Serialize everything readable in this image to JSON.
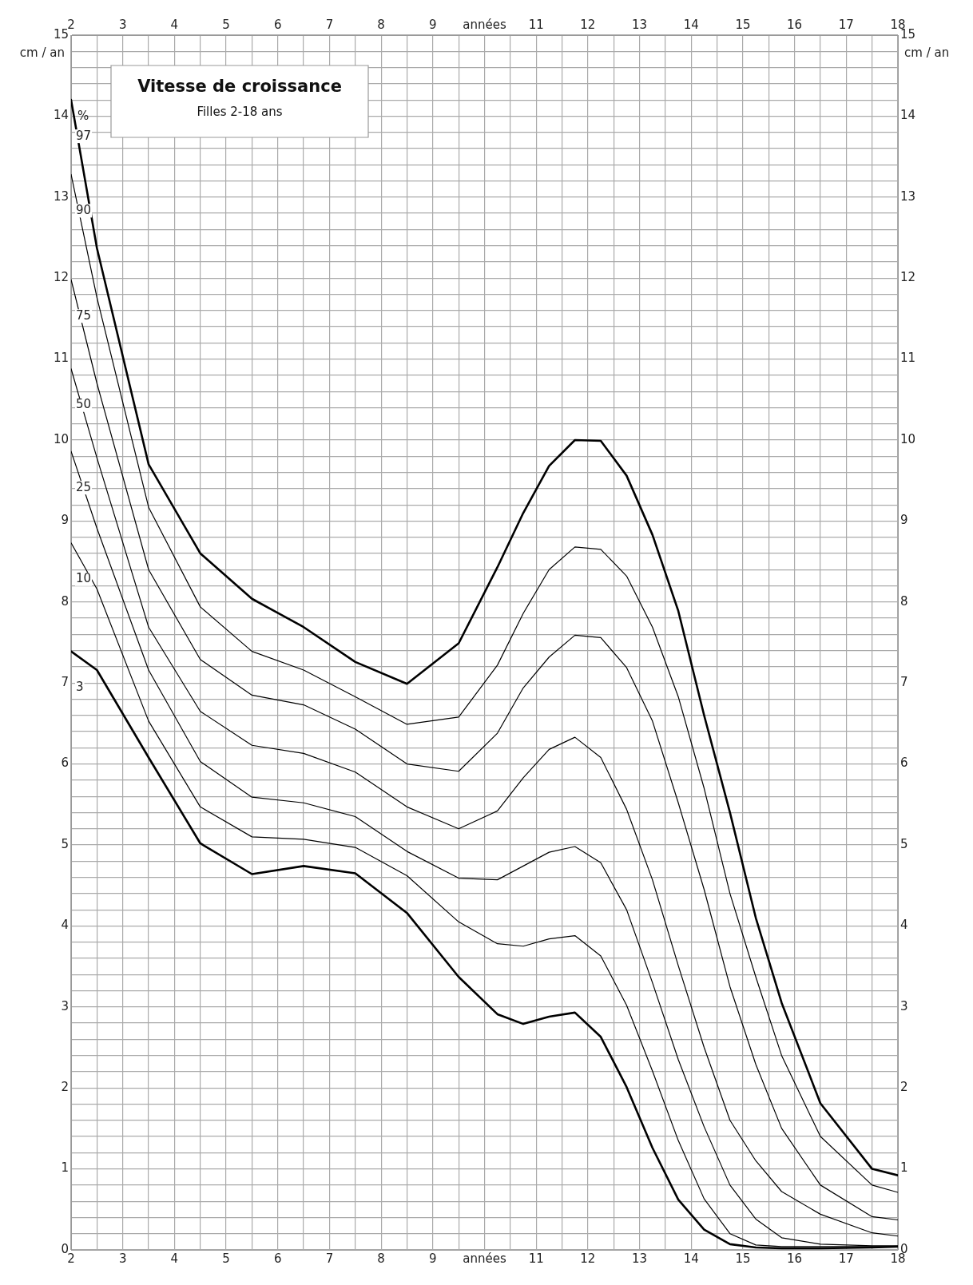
{
  "chart_data": {
    "type": "line",
    "title": "Vitesse de croissance",
    "subtitle": "Filles 2-18 ans",
    "ylabel": "cm / an",
    "y2label": "cm / an",
    "annotations": [
      "%"
    ],
    "x": [
      2,
      2.5,
      3.5,
      4.5,
      5.5,
      6.5,
      7.5,
      8.5,
      9.5,
      10.25,
      10.75,
      11.25,
      11.75,
      12.25,
      12.75,
      13.25,
      13.75,
      14.25,
      14.75,
      15.25,
      15.75,
      16.5,
      17.5,
      18
    ],
    "series": [
      {
        "name": "97",
        "color": "#000000",
        "values": [
          14.2,
          12.37,
          9.7,
          8.6,
          8.04,
          7.69,
          7.26,
          6.99,
          7.49,
          8.43,
          9.1,
          9.68,
          10.0,
          9.99,
          9.56,
          8.83,
          7.89,
          6.6,
          5.4,
          4.1,
          3.05,
          1.81,
          1.0,
          0.92
        ]
      },
      {
        "name": "90",
        "color": "#000000",
        "values": [
          13.28,
          11.76,
          9.17,
          7.94,
          7.39,
          7.16,
          6.83,
          6.49,
          6.58,
          7.22,
          7.86,
          8.4,
          8.68,
          8.65,
          8.32,
          7.69,
          6.83,
          5.7,
          4.4,
          3.37,
          2.4,
          1.4,
          0.8,
          0.71
        ]
      },
      {
        "name": "75",
        "color": "#000000",
        "values": [
          11.98,
          10.7,
          8.4,
          7.29,
          6.85,
          6.73,
          6.43,
          6.0,
          5.91,
          6.38,
          6.94,
          7.32,
          7.59,
          7.56,
          7.19,
          6.53,
          5.52,
          4.45,
          3.25,
          2.29,
          1.5,
          0.8,
          0.41,
          0.37
        ]
      },
      {
        "name": "50",
        "color": "#000000",
        "values": [
          10.88,
          9.78,
          7.69,
          6.65,
          6.23,
          6.13,
          5.9,
          5.47,
          5.2,
          5.42,
          5.83,
          6.18,
          6.33,
          6.08,
          5.44,
          4.57,
          3.51,
          2.5,
          1.6,
          1.1,
          0.72,
          0.44,
          0.21,
          0.17
        ]
      },
      {
        "name": "25",
        "color": "#000000",
        "values": [
          9.86,
          8.91,
          7.16,
          6.03,
          5.59,
          5.52,
          5.35,
          4.92,
          4.59,
          4.57,
          4.74,
          4.91,
          4.98,
          4.78,
          4.2,
          3.3,
          2.35,
          1.52,
          0.8,
          0.38,
          0.15,
          0.07,
          0.05,
          0.05
        ]
      },
      {
        "name": "10",
        "color": "#000000",
        "values": [
          8.73,
          8.16,
          6.53,
          5.47,
          5.1,
          5.07,
          4.97,
          4.62,
          4.05,
          3.78,
          3.75,
          3.84,
          3.88,
          3.63,
          3.02,
          2.21,
          1.35,
          0.63,
          0.2,
          0.06,
          0.04,
          0.04,
          0.04,
          0.04
        ]
      },
      {
        "name": "3",
        "color": "#000000",
        "values": [
          7.39,
          7.16,
          6.08,
          5.02,
          4.64,
          4.74,
          4.65,
          4.16,
          3.37,
          2.91,
          2.79,
          2.88,
          2.93,
          2.63,
          2.01,
          1.26,
          0.62,
          0.25,
          0.07,
          0.03,
          0.02,
          0.02,
          0.03,
          0.04
        ]
      }
    ],
    "xlim": [
      2,
      18
    ],
    "xticks": [
      2,
      {
        "value": 2.5,
        "label": null
      },
      3,
      {
        "value": 3.5,
        "label": null
      },
      4,
      {
        "value": 4.5,
        "label": null
      },
      5,
      {
        "value": 5.5,
        "label": null
      },
      6,
      {
        "value": 6.5,
        "label": null
      },
      7,
      {
        "value": 7.5,
        "label": null
      },
      8,
      {
        "value": 8.5,
        "label": null
      },
      9,
      {
        "value": 9.5,
        "label": null
      },
      {
        "value": 10,
        "label": "années"
      },
      {
        "value": 10.5,
        "label": null
      },
      11,
      {
        "value": 11.5,
        "label": null
      },
      12,
      {
        "value": 12.5,
        "label": null
      },
      13,
      {
        "value": 13.5,
        "label": null
      },
      14,
      {
        "value": 14.5,
        "label": null
      },
      15,
      {
        "value": 15.5,
        "label": null
      },
      16,
      {
        "value": 16.5,
        "label": null
      },
      17,
      {
        "value": 17.5,
        "label": null
      },
      18
    ],
    "x2lim": [
      2,
      18
    ],
    "x2ticks": [
      2,
      3,
      4,
      5,
      6,
      7,
      8,
      9,
      {
        "value": 10,
        "label": "années"
      },
      11,
      12,
      13,
      14,
      15,
      16,
      17,
      18
    ],
    "ylim": [
      0,
      15
    ],
    "yticks": [
      0,
      {
        "value": 0.2,
        "label": null
      },
      {
        "value": 0.4,
        "label": null
      },
      {
        "value": 0.6,
        "label": null
      },
      {
        "value": 0.8,
        "label": null
      },
      1,
      {
        "value": 1.2,
        "label": null
      },
      {
        "value": 1.4,
        "label": null
      },
      {
        "value": 1.6,
        "label": null
      },
      {
        "value": 1.8,
        "label": null
      },
      2,
      {
        "value": 2.2,
        "label": null
      },
      {
        "value": 2.4,
        "label": null
      },
      {
        "value": 2.6,
        "label": null
      },
      {
        "value": 2.8,
        "label": null
      },
      3,
      {
        "value": 3.2,
        "label": null
      },
      {
        "value": 3.4,
        "label": null
      },
      {
        "value": 3.6,
        "label": null
      },
      {
        "value": 3.8,
        "label": null
      },
      4,
      {
        "value": 4.2,
        "label": null
      },
      {
        "value": 4.4,
        "label": null
      },
      {
        "value": 4.6,
        "label": null
      },
      {
        "value": 4.8,
        "label": null
      },
      5,
      {
        "value": 5.2,
        "label": null
      },
      {
        "value": 5.4,
        "label": null
      },
      {
        "value": 5.6,
        "label": null
      },
      {
        "value": 5.8,
        "label": null
      },
      6,
      {
        "value": 6.2,
        "label": null
      },
      {
        "value": 6.4,
        "label": null
      },
      {
        "value": 6.6,
        "label": null
      },
      {
        "value": 6.8,
        "label": null
      },
      7,
      {
        "value": 7.2,
        "label": null
      },
      {
        "value": 7.4,
        "label": null
      },
      {
        "value": 7.6,
        "label": null
      },
      {
        "value": 7.8,
        "label": null
      },
      8,
      {
        "value": 8.2,
        "label": null
      },
      {
        "value": 8.4,
        "label": null
      },
      {
        "value": 8.6,
        "label": null
      },
      {
        "value": 8.8,
        "label": null
      },
      9,
      {
        "value": 9.2,
        "label": null
      },
      {
        "value": 9.4,
        "label": null
      },
      {
        "value": 9.6,
        "label": null
      },
      {
        "value": 9.8,
        "label": null
      },
      10,
      {
        "value": 10.2,
        "label": null
      },
      {
        "value": 10.4,
        "label": null
      },
      {
        "value": 10.6,
        "label": null
      },
      {
        "value": 10.8,
        "label": null
      },
      11,
      {
        "value": 11.2,
        "label": null
      },
      {
        "value": 11.4,
        "label": null
      },
      {
        "value": 11.6,
        "label": null
      },
      {
        "value": 11.8,
        "label": null
      },
      12,
      {
        "value": 12.2,
        "label": null
      },
      {
        "value": 12.4,
        "label": null
      },
      {
        "value": 12.6,
        "label": null
      },
      {
        "value": 12.8,
        "label": null
      },
      13,
      {
        "value": 13.2,
        "label": null
      },
      {
        "value": 13.4,
        "label": null
      },
      {
        "value": 13.6,
        "label": null
      },
      {
        "value": 13.8,
        "label": null
      },
      14,
      {
        "value": 14.2,
        "label": null
      },
      {
        "value": 14.4,
        "label": null
      },
      {
        "value": 14.6,
        "label": null
      },
      {
        "value": 14.8,
        "label": null
      },
      15
    ],
    "y2lim": [
      0,
      15
    ],
    "y2ticks": [
      0,
      1,
      2,
      3,
      4,
      5,
      6,
      7,
      8,
      9,
      10,
      11,
      12,
      13,
      14,
      15
    ],
    "grid": true,
    "legend": false,
    "marker": "none"
  }
}
